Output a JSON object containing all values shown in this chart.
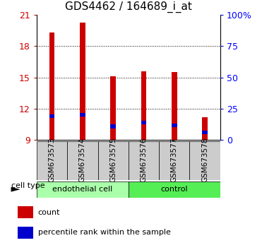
{
  "title": "GDS4462 / 164689_i_at",
  "samples": [
    "GSM673573",
    "GSM673574",
    "GSM673575",
    "GSM673576",
    "GSM673577",
    "GSM673578"
  ],
  "count_values": [
    19.3,
    20.3,
    15.1,
    15.6,
    15.5,
    11.2
  ],
  "percentile_values": [
    11.3,
    11.4,
    10.3,
    10.7,
    10.4,
    9.7
  ],
  "bar_bottom": 9.0,
  "count_color": "#cc0000",
  "percentile_color": "#0000cc",
  "ylim_left": [
    9,
    21
  ],
  "ylim_right": [
    0,
    100
  ],
  "yticks_left": [
    9,
    12,
    15,
    18,
    21
  ],
  "yticks_right": [
    0,
    25,
    50,
    75,
    100
  ],
  "ytick_labels_right": [
    "0",
    "25",
    "50",
    "75",
    "100%"
  ],
  "ytick_labels_left": [
    "9",
    "12",
    "15",
    "18",
    "21"
  ],
  "group1": {
    "label": "endothelial cell",
    "indices": [
      0,
      1,
      2
    ],
    "color": "#aaffaa"
  },
  "group2": {
    "label": "control",
    "indices": [
      3,
      4,
      5
    ],
    "color": "#55ee55"
  },
  "cell_type_label": "cell type",
  "legend_items": [
    {
      "label": "count",
      "color": "#cc0000"
    },
    {
      "label": "percentile rank within the sample",
      "color": "#0000cc"
    }
  ],
  "bar_width": 0.18,
  "background_color": "#ffffff",
  "tick_box_color": "#cccccc",
  "title_fontsize": 11
}
